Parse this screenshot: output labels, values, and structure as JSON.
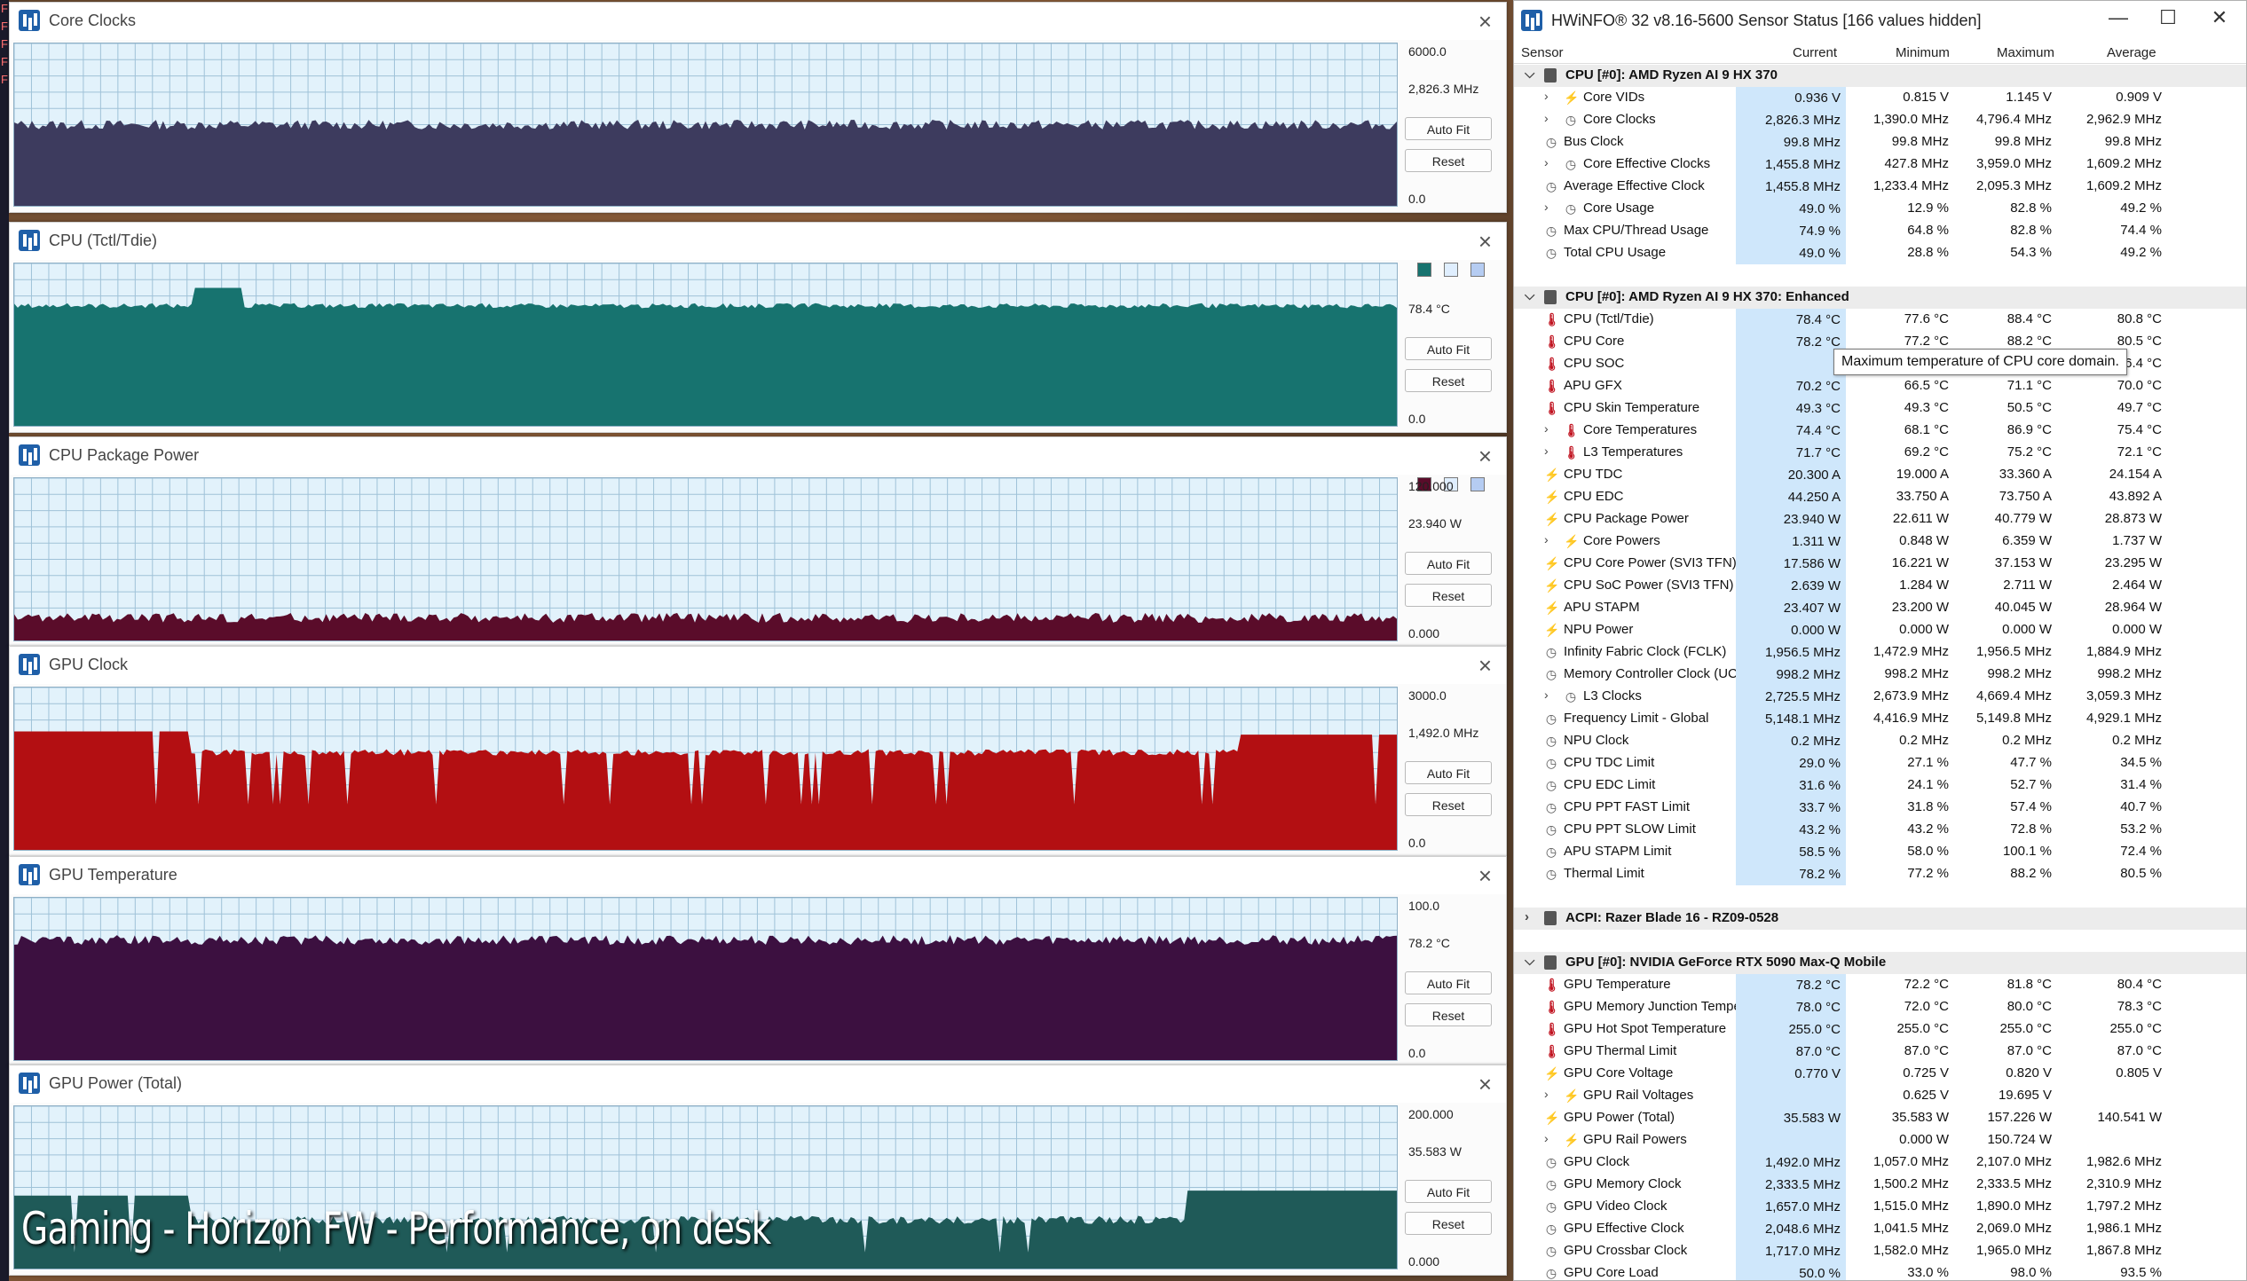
{
  "left_strip": [
    "F",
    "F",
    "F",
    "F",
    "F"
  ],
  "overlay_caption": "Gaming - Horizon FW - Performance, on desk",
  "graph_windows": [
    {
      "title": "Core Clocks",
      "max": "6000.0",
      "current": "2,826.3 MHz",
      "min": "0.0",
      "color": "#3d3b5e",
      "autofit": "Auto Fit",
      "reset": "Reset",
      "series_max": 6000,
      "swatches": []
    },
    {
      "title": "CPU (Tctl/Tdie)",
      "max": "",
      "current": "78.4 °C",
      "min": "0.0",
      "color": "#17736f",
      "autofit": "Auto Fit",
      "reset": "Reset",
      "series_max": 100,
      "swatches": [
        "#17736f",
        "#dfeefe",
        "#b5ccf2"
      ]
    },
    {
      "title": "CPU Package Power",
      "max": "120.000",
      "current": "23.940 W",
      "min": "0.000",
      "color": "#5a0c2a",
      "autofit": "Auto Fit",
      "reset": "Reset",
      "series_max": 120,
      "swatches": [
        "#5a0c2a",
        "#dfeefe",
        "#b5ccf2"
      ]
    },
    {
      "title": "GPU Clock",
      "max": "3000.0",
      "current": "1,492.0 MHz",
      "min": "0.0",
      "color": "#b30f12",
      "autofit": "Auto Fit",
      "reset": "Reset",
      "series_max": 3000,
      "swatches": []
    },
    {
      "title": "GPU Temperature",
      "max": "100.0",
      "current": "78.2 °C",
      "min": "0.0",
      "color": "#3c1040",
      "autofit": "Auto Fit",
      "reset": "Reset",
      "series_max": 100,
      "swatches": []
    },
    {
      "title": "GPU Power (Total)",
      "max": "200.000",
      "current": "35.583 W",
      "min": "0.000",
      "color": "#1f5a58",
      "autofit": "Auto Fit",
      "reset": "Reset",
      "series_max": 200,
      "swatches": []
    }
  ],
  "hwinfo": {
    "title": "HWiNFO® 32 v8.16-5600 Sensor Status [166 values hidden]",
    "controls": {
      "minimize": "—",
      "maximize": "☐",
      "close": "✕"
    },
    "columns": {
      "sensor": "Sensor",
      "current": "Current",
      "minimum": "Minimum",
      "maximum": "Maximum",
      "average": "Average"
    },
    "tooltip": "Maximum temperature of CPU core domain.",
    "rows": [
      {
        "t": "g",
        "name": "CPU [#0]: AMD Ryzen AI 9 HX 370",
        "exp": "v"
      },
      {
        "t": "r",
        "name": "Core VIDs",
        "icon": "pw",
        "sub": true,
        "exp": ">",
        "cur": "0.936 V",
        "min": "0.815 V",
        "max": "1.145 V",
        "avg": "0.909 V"
      },
      {
        "t": "r",
        "name": "Core Clocks",
        "icon": "clk",
        "sub": true,
        "exp": ">",
        "cur": "2,826.3 MHz",
        "min": "1,390.0 MHz",
        "max": "4,796.4 MHz",
        "avg": "2,962.9 MHz"
      },
      {
        "t": "r",
        "name": "Bus Clock",
        "icon": "clk",
        "cur": "99.8 MHz",
        "min": "99.8 MHz",
        "max": "99.8 MHz",
        "avg": "99.8 MHz"
      },
      {
        "t": "r",
        "name": "Core Effective Clocks",
        "icon": "clk",
        "sub": true,
        "exp": ">",
        "cur": "1,455.8 MHz",
        "min": "427.8 MHz",
        "max": "3,959.0 MHz",
        "avg": "1,609.2 MHz"
      },
      {
        "t": "r",
        "name": "Average Effective Clock",
        "icon": "clk",
        "cur": "1,455.8 MHz",
        "min": "1,233.4 MHz",
        "max": "2,095.3 MHz",
        "avg": "1,609.2 MHz"
      },
      {
        "t": "r",
        "name": "Core Usage",
        "icon": "clk",
        "sub": true,
        "exp": ">",
        "cur": "49.0 %",
        "min": "12.9 %",
        "max": "82.8 %",
        "avg": "49.2 %"
      },
      {
        "t": "r",
        "name": "Max CPU/Thread Usage",
        "icon": "clk",
        "cur": "74.9 %",
        "min": "64.8 %",
        "max": "82.8 %",
        "avg": "74.4 %"
      },
      {
        "t": "r",
        "name": "Total CPU Usage",
        "icon": "clk",
        "cur": "49.0 %",
        "min": "28.8 %",
        "max": "54.3 %",
        "avg": "49.2 %"
      },
      {
        "t": "b"
      },
      {
        "t": "g",
        "name": "CPU [#0]: AMD Ryzen AI 9 HX 370: Enhanced",
        "exp": "v"
      },
      {
        "t": "r",
        "name": "CPU (Tctl/Tdie)",
        "icon": "tmp",
        "cur": "78.4 °C",
        "min": "77.6 °C",
        "max": "88.4 °C",
        "avg": "80.8 °C"
      },
      {
        "t": "r",
        "name": "CPU Core",
        "icon": "tmp",
        "cur": "78.2 °C",
        "min": "77.2 °C",
        "max": "88.2 °C",
        "avg": "80.5 °C"
      },
      {
        "t": "r",
        "name": "CPU SOC",
        "icon": "tmp",
        "cur": "",
        "min": "",
        "max": "",
        "avg": "76.4 °C"
      },
      {
        "t": "r",
        "name": "APU GFX",
        "icon": "tmp",
        "cur": "70.2 °C",
        "min": "66.5 °C",
        "max": "71.1 °C",
        "avg": "70.0 °C"
      },
      {
        "t": "r",
        "name": "CPU Skin Temperature",
        "icon": "tmp",
        "cur": "49.3 °C",
        "min": "49.3 °C",
        "max": "50.5 °C",
        "avg": "49.7 °C"
      },
      {
        "t": "r",
        "name": "Core Temperatures",
        "icon": "tmp",
        "sub": true,
        "exp": ">",
        "cur": "74.4 °C",
        "min": "68.1 °C",
        "max": "86.9 °C",
        "avg": "75.4 °C"
      },
      {
        "t": "r",
        "name": "L3 Temperatures",
        "icon": "tmp",
        "sub": true,
        "exp": ">",
        "cur": "71.7 °C",
        "min": "69.2 °C",
        "max": "75.2 °C",
        "avg": "72.1 °C"
      },
      {
        "t": "r",
        "name": "CPU TDC",
        "icon": "pw",
        "cur": "20.300 A",
        "min": "19.000 A",
        "max": "33.360 A",
        "avg": "24.154 A"
      },
      {
        "t": "r",
        "name": "CPU EDC",
        "icon": "pw",
        "cur": "44.250 A",
        "min": "33.750 A",
        "max": "73.750 A",
        "avg": "43.892 A"
      },
      {
        "t": "r",
        "name": "CPU Package Power",
        "icon": "pw",
        "cur": "23.940 W",
        "min": "22.611 W",
        "max": "40.779 W",
        "avg": "28.873 W"
      },
      {
        "t": "r",
        "name": "Core Powers",
        "icon": "pw",
        "sub": true,
        "exp": ">",
        "cur": "1.311 W",
        "min": "0.848 W",
        "max": "6.359 W",
        "avg": "1.737 W"
      },
      {
        "t": "r",
        "name": "CPU Core Power (SVI3 TFN)",
        "icon": "pw",
        "cur": "17.586 W",
        "min": "16.221 W",
        "max": "37.153 W",
        "avg": "23.295 W"
      },
      {
        "t": "r",
        "name": "CPU SoC Power (SVI3 TFN)",
        "icon": "pw",
        "cur": "2.639 W",
        "min": "1.284 W",
        "max": "2.711 W",
        "avg": "2.464 W"
      },
      {
        "t": "r",
        "name": "APU STAPM",
        "icon": "pw",
        "cur": "23.407 W",
        "min": "23.200 W",
        "max": "40.045 W",
        "avg": "28.964 W"
      },
      {
        "t": "r",
        "name": "NPU Power",
        "icon": "pw",
        "cur": "0.000 W",
        "min": "0.000 W",
        "max": "0.000 W",
        "avg": "0.000 W"
      },
      {
        "t": "r",
        "name": "Infinity Fabric Clock (FCLK)",
        "icon": "clk",
        "cur": "1,956.5 MHz",
        "min": "1,472.9 MHz",
        "max": "1,956.5 MHz",
        "avg": "1,884.9 MHz"
      },
      {
        "t": "r",
        "name": "Memory Controller Clock (UCLK)",
        "icon": "clk",
        "cur": "998.2 MHz",
        "min": "998.2 MHz",
        "max": "998.2 MHz",
        "avg": "998.2 MHz"
      },
      {
        "t": "r",
        "name": "L3 Clocks",
        "icon": "clk",
        "sub": true,
        "exp": ">",
        "cur": "2,725.5 MHz",
        "min": "2,673.9 MHz",
        "max": "4,669.4 MHz",
        "avg": "3,059.3 MHz"
      },
      {
        "t": "r",
        "name": "Frequency Limit - Global",
        "icon": "clk",
        "cur": "5,148.1 MHz",
        "min": "4,416.9 MHz",
        "max": "5,149.8 MHz",
        "avg": "4,929.1 MHz"
      },
      {
        "t": "r",
        "name": "NPU Clock",
        "icon": "clk",
        "cur": "0.2 MHz",
        "min": "0.2 MHz",
        "max": "0.2 MHz",
        "avg": "0.2 MHz"
      },
      {
        "t": "r",
        "name": "CPU TDC Limit",
        "icon": "clk",
        "cur": "29.0 %",
        "min": "27.1 %",
        "max": "47.7 %",
        "avg": "34.5 %"
      },
      {
        "t": "r",
        "name": "CPU EDC Limit",
        "icon": "clk",
        "cur": "31.6 %",
        "min": "24.1 %",
        "max": "52.7 %",
        "avg": "31.4 %"
      },
      {
        "t": "r",
        "name": "CPU PPT FAST Limit",
        "icon": "clk",
        "cur": "33.7 %",
        "min": "31.8 %",
        "max": "57.4 %",
        "avg": "40.7 %"
      },
      {
        "t": "r",
        "name": "CPU PPT SLOW Limit",
        "icon": "clk",
        "cur": "43.2 %",
        "min": "43.2 %",
        "max": "72.8 %",
        "avg": "53.2 %"
      },
      {
        "t": "r",
        "name": "APU STAPM Limit",
        "icon": "clk",
        "cur": "58.5 %",
        "min": "58.0 %",
        "max": "100.1 %",
        "avg": "72.4 %"
      },
      {
        "t": "r",
        "name": "Thermal Limit",
        "icon": "clk",
        "cur": "78.2 %",
        "min": "77.2 %",
        "max": "88.2 %",
        "avg": "80.5 %"
      },
      {
        "t": "b"
      },
      {
        "t": "g",
        "name": "ACPI: Razer Blade 16 - RZ09-0528",
        "exp": ">"
      },
      {
        "t": "b"
      },
      {
        "t": "g",
        "name": "GPU [#0]: NVIDIA  GeForce RTX 5090 Max-Q Mobile",
        "exp": "v"
      },
      {
        "t": "r",
        "name": "GPU Temperature",
        "icon": "tmp",
        "cur": "78.2 °C",
        "min": "72.2 °C",
        "max": "81.8 °C",
        "avg": "80.4 °C"
      },
      {
        "t": "r",
        "name": "GPU Memory Junction Temperature",
        "icon": "tmp",
        "cur": "78.0 °C",
        "min": "72.0 °C",
        "max": "80.0 °C",
        "avg": "78.3 °C"
      },
      {
        "t": "r",
        "name": "GPU Hot Spot Temperature",
        "icon": "tmp",
        "cur": "255.0 °C",
        "min": "255.0 °C",
        "max": "255.0 °C",
        "avg": "255.0 °C"
      },
      {
        "t": "r",
        "name": "GPU Thermal Limit",
        "icon": "tmp",
        "cur": "87.0 °C",
        "min": "87.0 °C",
        "max": "87.0 °C",
        "avg": "87.0 °C"
      },
      {
        "t": "r",
        "name": "GPU Core Voltage",
        "icon": "pw",
        "cur": "0.770 V",
        "min": "0.725 V",
        "max": "0.820 V",
        "avg": "0.805 V"
      },
      {
        "t": "r",
        "name": "GPU Rail Voltages",
        "icon": "pw",
        "sub": true,
        "exp": ">",
        "cur": "",
        "min": "0.625 V",
        "max": "19.695 V",
        "avg": ""
      },
      {
        "t": "r",
        "name": "GPU Power (Total)",
        "icon": "pw",
        "cur": "35.583 W",
        "min": "35.583 W",
        "max": "157.226 W",
        "avg": "140.541 W"
      },
      {
        "t": "r",
        "name": "GPU Rail Powers",
        "icon": "pw",
        "sub": true,
        "exp": ">",
        "cur": "",
        "min": "0.000 W",
        "max": "150.724 W",
        "avg": ""
      },
      {
        "t": "r",
        "name": "GPU Clock",
        "icon": "clk",
        "cur": "1,492.0 MHz",
        "min": "1,057.0 MHz",
        "max": "2,107.0 MHz",
        "avg": "1,982.6 MHz"
      },
      {
        "t": "r",
        "name": "GPU Memory Clock",
        "icon": "clk",
        "cur": "2,333.5 MHz",
        "min": "1,500.2 MHz",
        "max": "2,333.5 MHz",
        "avg": "2,310.9 MHz"
      },
      {
        "t": "r",
        "name": "GPU Video Clock",
        "icon": "clk",
        "cur": "1,657.0 MHz",
        "min": "1,515.0 MHz",
        "max": "1,890.0 MHz",
        "avg": "1,797.2 MHz"
      },
      {
        "t": "r",
        "name": "GPU Effective Clock",
        "icon": "clk",
        "cur": "2,048.6 MHz",
        "min": "1,041.5 MHz",
        "max": "2,069.0 MHz",
        "avg": "1,986.1 MHz"
      },
      {
        "t": "r",
        "name": "GPU Crossbar Clock",
        "icon": "clk",
        "cur": "1,717.0 MHz",
        "min": "1,582.0 MHz",
        "max": "1,965.0 MHz",
        "avg": "1,867.8 MHz"
      },
      {
        "t": "r",
        "name": "GPU Core Load",
        "icon": "clk",
        "cur": "50.0 %",
        "min": "33.0 %",
        "max": "98.0 %",
        "avg": "93.5 %"
      }
    ]
  }
}
